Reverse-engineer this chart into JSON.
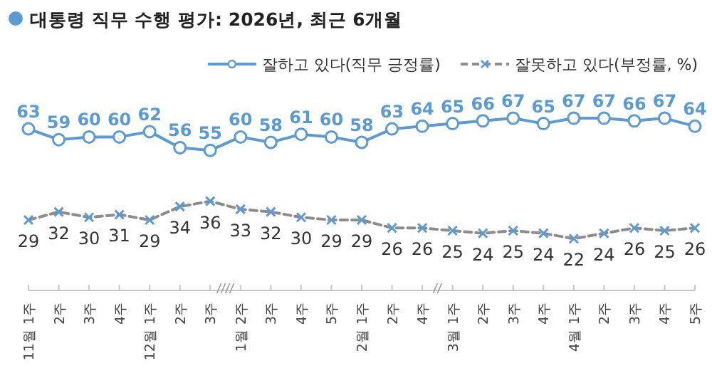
{
  "chart_data": {
    "type": "line",
    "title": "대통령 직무 수행 평가: 2026년, 최근 6개월",
    "categories": [
      "11월 1주",
      "2주",
      "3주",
      "4주",
      "12월 1주",
      "2주",
      "3주",
      "1월 2주",
      "3주",
      "4주",
      "5주",
      "2월 1주",
      "2주",
      "4주",
      "3월 1주",
      "2주",
      "3주",
      "4주",
      "4월 1주",
      "2주",
      "3주",
      "4주",
      "5주"
    ],
    "series": [
      {
        "name": "잘하고 있다(직무 긍정률)",
        "color": "#5b9bd5",
        "marker": "circle",
        "line_style": "solid",
        "values": [
          63,
          59,
          60,
          60,
          62,
          56,
          55,
          60,
          58,
          61,
          60,
          58,
          63,
          64,
          65,
          66,
          67,
          65,
          67,
          67,
          66,
          67,
          64
        ]
      },
      {
        "name": "잘못하고 있다(부정률, %)",
        "color": "#8c8c8c",
        "marker": "cross",
        "line_style": "dashed",
        "values": [
          29,
          32,
          30,
          31,
          29,
          34,
          36,
          33,
          32,
          30,
          29,
          29,
          26,
          26,
          25,
          24,
          25,
          24,
          22,
          24,
          26,
          25,
          26
        ]
      }
    ],
    "relative": false,
    "data_labels": true,
    "legend": "top right"
  }
}
